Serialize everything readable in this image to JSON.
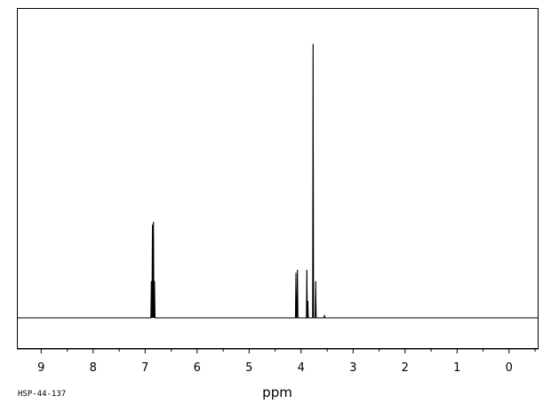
{
  "chart_data": {
    "type": "line",
    "title": "",
    "xlabel": "ppm",
    "ylabel": "",
    "xlim": [
      9.45,
      -0.55
    ],
    "x_reversed": true,
    "ylim": [
      -0.1,
      1.0
    ],
    "grid": false,
    "legend": "none",
    "tick_labels": [
      "9",
      "8",
      "7",
      "6",
      "5",
      "4",
      "3",
      "2",
      "1",
      "0"
    ],
    "tick_values": [
      9,
      8,
      7,
      6,
      5,
      4,
      3,
      2,
      1,
      0
    ],
    "series": [
      {
        "peaks": [
          {
            "ppm": 6.88,
            "intensity": 0.13
          },
          {
            "ppm": 6.86,
            "intensity": 0.33
          },
          {
            "ppm": 6.84,
            "intensity": 0.34
          },
          {
            "ppm": 6.82,
            "intensity": 0.13
          },
          {
            "ppm": 4.1,
            "intensity": 0.16
          },
          {
            "ppm": 4.07,
            "intensity": 0.17
          },
          {
            "ppm": 3.89,
            "intensity": 0.17
          },
          {
            "ppm": 3.87,
            "intensity": 0.06
          },
          {
            "ppm": 3.77,
            "intensity": 0.97
          },
          {
            "ppm": 3.72,
            "intensity": 0.13
          },
          {
            "ppm": 3.55,
            "intensity": 0.01
          }
        ]
      }
    ],
    "colors": {
      "line": "#000000",
      "frame": "#000000",
      "background": "#ffffff"
    }
  },
  "footnote": "HSP-44-137"
}
